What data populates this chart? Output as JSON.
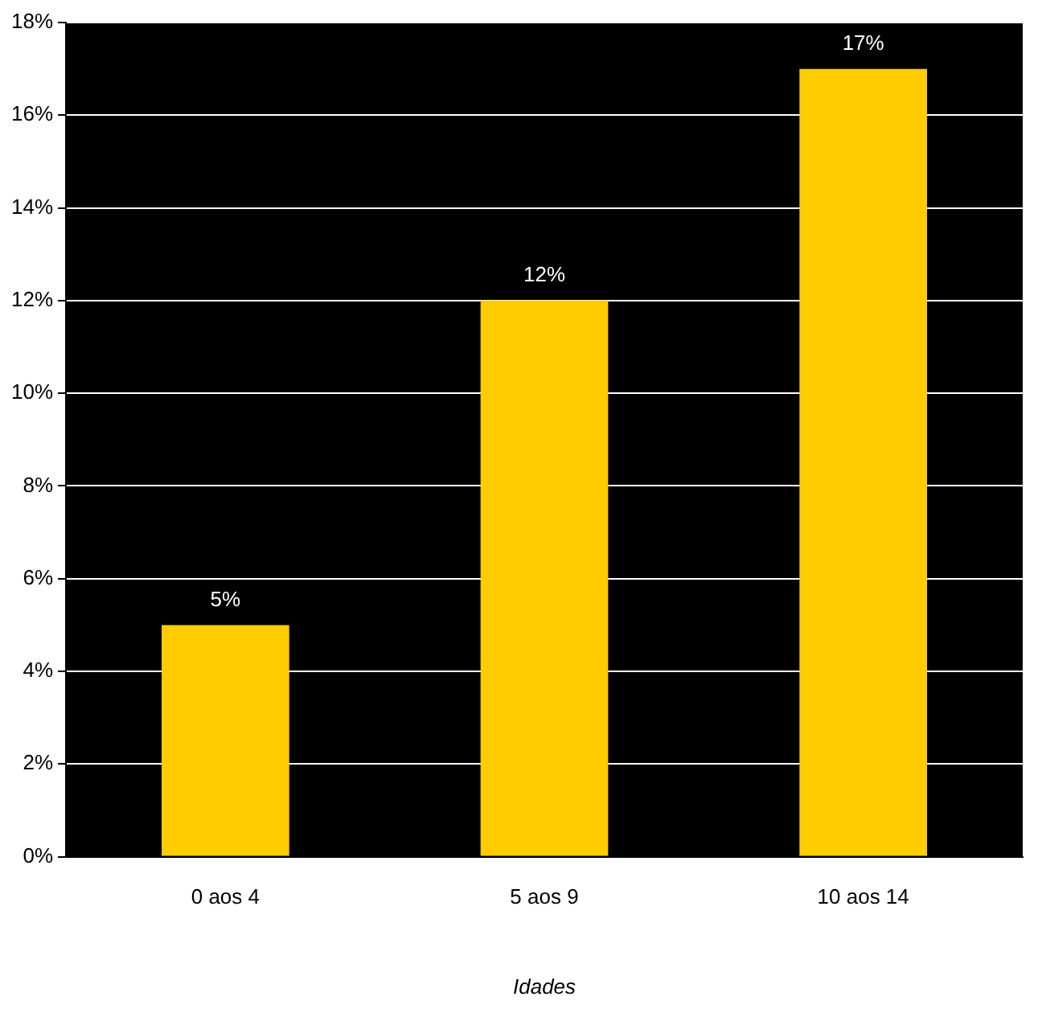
{
  "chart_data": {
    "type": "bar",
    "xlabel": "Idades",
    "categories": [
      "0 aos 4",
      "5 aos 9",
      "10 aos 14"
    ],
    "values": [
      5,
      12,
      17
    ],
    "color": "#ffcc00",
    "value_labels": [
      "5%",
      "12%",
      "17%"
    ],
    "ylim": [
      0,
      18
    ],
    "yticks": [
      {
        "value": 0,
        "label": "0%"
      },
      {
        "value": 2,
        "label": "2%"
      },
      {
        "value": 4,
        "label": "4%"
      },
      {
        "value": 6,
        "label": "6%"
      },
      {
        "value": 8,
        "label": "8%"
      },
      {
        "value": 10,
        "label": "10%"
      },
      {
        "value": 12,
        "label": "12%"
      },
      {
        "value": 14,
        "label": "14%"
      },
      {
        "value": 16,
        "label": "16%"
      },
      {
        "value": 18,
        "label": "18%"
      }
    ],
    "grid": "y",
    "legend": false
  }
}
